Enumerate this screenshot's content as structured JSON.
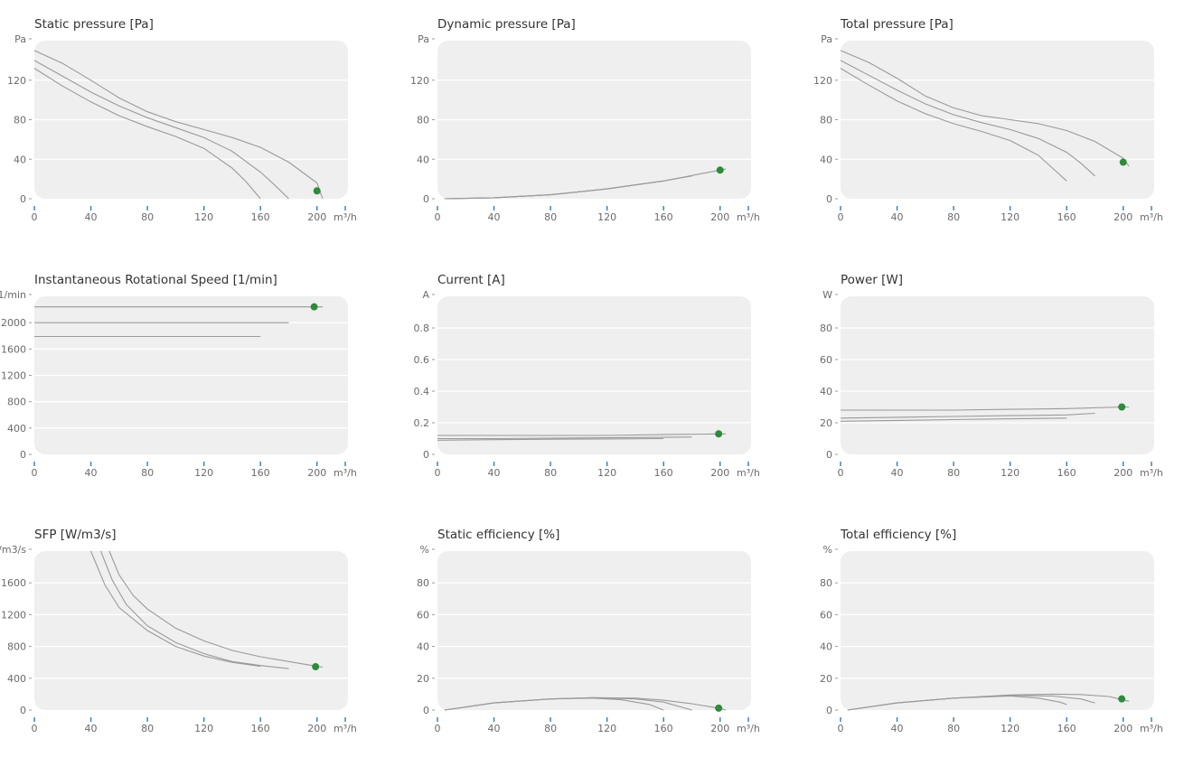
{
  "colors": {
    "background": "#efefef",
    "curve": "#9a9a9a",
    "operating_point": "#2e8b3a",
    "x_tick": "#2f7fae"
  },
  "chart_data": [
    {
      "id": "static-pressure",
      "type": "line",
      "title": "Static pressure [Pa]",
      "xunit": "m³/h",
      "yunit": "Pa",
      "xlim": [
        0,
        220
      ],
      "ylim": [
        0,
        160
      ],
      "xticks": [
        0,
        40,
        80,
        120,
        160,
        200
      ],
      "yticks": [
        0,
        40,
        80,
        120
      ],
      "series": [
        {
          "x": [
            0,
            20,
            40,
            60,
            80,
            100,
            120,
            140,
            160,
            180,
            200,
            204
          ],
          "y": [
            150,
            137,
            120,
            102,
            88,
            78,
            70,
            62,
            52,
            37,
            16,
            0
          ]
        },
        {
          "x": [
            0,
            20,
            40,
            60,
            80,
            100,
            120,
            140,
            160,
            170,
            180
          ],
          "y": [
            140,
            124,
            108,
            94,
            82,
            72,
            62,
            48,
            27,
            14,
            0
          ]
        },
        {
          "x": [
            0,
            20,
            40,
            60,
            80,
            100,
            120,
            140,
            150,
            160
          ],
          "y": [
            132,
            114,
            98,
            84,
            73,
            63,
            51,
            31,
            17,
            0
          ]
        }
      ],
      "operating_point": {
        "x": 200,
        "y": 8
      }
    },
    {
      "id": "dynamic-pressure",
      "type": "line",
      "title": "Dynamic pressure [Pa]",
      "xunit": "m³/h",
      "yunit": "Pa",
      "xlim": [
        0,
        220
      ],
      "ylim": [
        0,
        160
      ],
      "xticks": [
        0,
        40,
        80,
        120,
        160,
        200
      ],
      "yticks": [
        0,
        40,
        80,
        120
      ],
      "series": [
        {
          "x": [
            5,
            40,
            80,
            120,
            160,
            200,
            204
          ],
          "y": [
            0,
            1,
            4,
            10,
            18,
            29,
            30
          ]
        },
        {
          "x": [
            5,
            40,
            80,
            120,
            160,
            180
          ],
          "y": [
            0,
            1,
            4,
            10,
            18,
            23
          ]
        },
        {
          "x": [
            5,
            40,
            80,
            120,
            160
          ],
          "y": [
            0,
            1,
            4,
            10,
            18
          ]
        }
      ],
      "operating_point": {
        "x": 200,
        "y": 29
      }
    },
    {
      "id": "total-pressure",
      "type": "line",
      "title": "Total pressure [Pa]",
      "xunit": "m³/h",
      "yunit": "Pa",
      "xlim": [
        0,
        220
      ],
      "ylim": [
        0,
        160
      ],
      "xticks": [
        0,
        40,
        80,
        120,
        160,
        200
      ],
      "yticks": [
        0,
        40,
        80,
        120
      ],
      "series": [
        {
          "x": [
            0,
            20,
            40,
            60,
            80,
            100,
            120,
            140,
            160,
            180,
            200,
            204
          ],
          "y": [
            150,
            138,
            122,
            104,
            92,
            84,
            80,
            76,
            69,
            58,
            41,
            33
          ]
        },
        {
          "x": [
            0,
            20,
            40,
            60,
            80,
            100,
            120,
            140,
            160,
            170,
            180
          ],
          "y": [
            140,
            125,
            110,
            96,
            85,
            77,
            70,
            61,
            47,
            36,
            23
          ]
        },
        {
          "x": [
            0,
            20,
            40,
            60,
            80,
            100,
            120,
            140,
            150,
            160
          ],
          "y": [
            132,
            115,
            99,
            86,
            76,
            68,
            59,
            44,
            31,
            18
          ]
        }
      ],
      "operating_point": {
        "x": 200,
        "y": 37
      }
    },
    {
      "id": "rotational-speed",
      "type": "line",
      "title": "Instantaneous Rotational Speed [1/min]",
      "xunit": "m³/h",
      "yunit": "1/min",
      "xlim": [
        0,
        220
      ],
      "ylim": [
        0,
        2400
      ],
      "xticks": [
        0,
        40,
        80,
        120,
        160,
        200
      ],
      "yticks": [
        0,
        400,
        800,
        1200,
        1600,
        2000
      ],
      "series": [
        {
          "x": [
            0,
            204
          ],
          "y": [
            2240,
            2240
          ]
        },
        {
          "x": [
            0,
            180
          ],
          "y": [
            2000,
            2000
          ]
        },
        {
          "x": [
            0,
            160
          ],
          "y": [
            1790,
            1790
          ]
        }
      ],
      "operating_point": {
        "x": 198,
        "y": 2240
      }
    },
    {
      "id": "current",
      "type": "line",
      "title": "Current [A]",
      "xunit": "m³/h",
      "yunit": "A",
      "xlim": [
        0,
        220
      ],
      "ylim": [
        0,
        1
      ],
      "xticks": [
        0,
        40,
        80,
        120,
        160,
        200
      ],
      "yticks": [
        0,
        0.2,
        0.4,
        0.6,
        0.8
      ],
      "series": [
        {
          "x": [
            0,
            40,
            80,
            120,
            160,
            200,
            204
          ],
          "y": [
            0.12,
            0.12,
            0.12,
            0.12,
            0.125,
            0.13,
            0.13
          ]
        },
        {
          "x": [
            0,
            40,
            80,
            120,
            160,
            180
          ],
          "y": [
            0.1,
            0.1,
            0.103,
            0.105,
            0.108,
            0.11
          ]
        },
        {
          "x": [
            0,
            40,
            80,
            120,
            160
          ],
          "y": [
            0.09,
            0.093,
            0.096,
            0.098,
            0.1
          ]
        }
      ],
      "operating_point": {
        "x": 199,
        "y": 0.13
      }
    },
    {
      "id": "power",
      "type": "line",
      "title": "Power [W]",
      "xunit": "m³/h",
      "yunit": "W",
      "xlim": [
        0,
        220
      ],
      "ylim": [
        0,
        100
      ],
      "xticks": [
        0,
        40,
        80,
        120,
        160,
        200
      ],
      "yticks": [
        0,
        20,
        40,
        60,
        80
      ],
      "series": [
        {
          "x": [
            0,
            40,
            80,
            120,
            160,
            200,
            204
          ],
          "y": [
            28,
            28,
            28,
            28.5,
            29,
            30,
            30
          ]
        },
        {
          "x": [
            0,
            40,
            80,
            120,
            160,
            180
          ],
          "y": [
            23,
            23.5,
            24,
            24.5,
            25,
            26
          ]
        },
        {
          "x": [
            0,
            40,
            80,
            120,
            160
          ],
          "y": [
            21,
            21.5,
            22,
            22.5,
            23
          ]
        }
      ],
      "operating_point": {
        "x": 199,
        "y": 30
      }
    },
    {
      "id": "sfp",
      "type": "line",
      "title": "SFP [W/m3/s]",
      "xunit": "m³/h",
      "yunit": "W/m3/s",
      "xlim": [
        0,
        220
      ],
      "ylim": [
        0,
        2000
      ],
      "xticks": [
        0,
        40,
        80,
        120,
        160,
        200
      ],
      "yticks": [
        0,
        400,
        800,
        1200,
        1600
      ],
      "series": [
        {
          "x": [
            53,
            60,
            70,
            80,
            100,
            120,
            140,
            160,
            180,
            200,
            204
          ],
          "y": [
            2000,
            1700,
            1440,
            1270,
            1030,
            870,
            750,
            670,
            610,
            550,
            540
          ]
        },
        {
          "x": [
            47,
            55,
            65,
            80,
            100,
            120,
            140,
            160,
            180
          ],
          "y": [
            2000,
            1640,
            1330,
            1060,
            850,
            710,
            610,
            560,
            520
          ]
        },
        {
          "x": [
            40,
            50,
            60,
            80,
            100,
            120,
            140,
            160
          ],
          "y": [
            2000,
            1570,
            1290,
            1000,
            800,
            680,
            600,
            550
          ]
        }
      ],
      "operating_point": {
        "x": 199,
        "y": 545
      }
    },
    {
      "id": "static-efficiency",
      "type": "line",
      "title": "Static efficiency [%]",
      "xunit": "m³/h",
      "yunit": "%",
      "xlim": [
        0,
        220
      ],
      "ylim": [
        0,
        100
      ],
      "xticks": [
        0,
        40,
        80,
        120,
        160,
        200
      ],
      "yticks": [
        0,
        20,
        40,
        60,
        80
      ],
      "series": [
        {
          "x": [
            5,
            40,
            80,
            110,
            140,
            160,
            180,
            200,
            204
          ],
          "y": [
            0,
            4.5,
            7,
            7.8,
            7.5,
            6.2,
            4,
            1,
            0
          ]
        },
        {
          "x": [
            5,
            40,
            80,
            110,
            140,
            160,
            180
          ],
          "y": [
            0,
            4.5,
            7,
            7.8,
            7,
            5,
            0
          ]
        },
        {
          "x": [
            5,
            40,
            80,
            110,
            130,
            150,
            160
          ],
          "y": [
            0,
            4.5,
            7,
            7.5,
            6.5,
            3.5,
            0
          ]
        }
      ],
      "operating_point": {
        "x": 199,
        "y": 1.2
      }
    },
    {
      "id": "total-efficiency",
      "type": "line",
      "title": "Total efficiency [%]",
      "xunit": "m³/h",
      "yunit": "%",
      "xlim": [
        0,
        220
      ],
      "ylim": [
        0,
        100
      ],
      "xticks": [
        0,
        40,
        80,
        120,
        160,
        200
      ],
      "yticks": [
        0,
        20,
        40,
        60,
        80
      ],
      "series": [
        {
          "x": [
            5,
            40,
            80,
            120,
            150,
            170,
            190,
            204
          ],
          "y": [
            0,
            4.5,
            7.5,
            9.5,
            10,
            9.8,
            8.5,
            5.5
          ]
        },
        {
          "x": [
            5,
            40,
            80,
            120,
            150,
            170,
            180
          ],
          "y": [
            0,
            4.5,
            7.5,
            9.2,
            8.8,
            7,
            4.5
          ]
        },
        {
          "x": [
            5,
            40,
            80,
            120,
            140,
            155,
            160
          ],
          "y": [
            0,
            4.5,
            7.5,
            8.8,
            7.5,
            5,
            3.5
          ]
        }
      ],
      "operating_point": {
        "x": 199,
        "y": 7
      }
    }
  ]
}
